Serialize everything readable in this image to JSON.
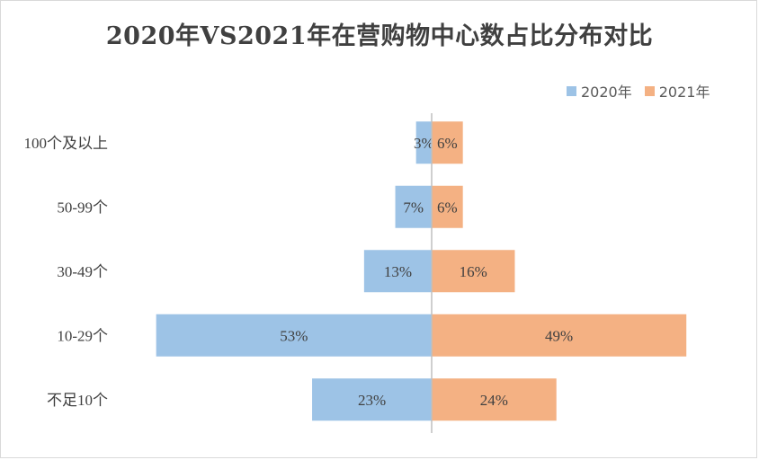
{
  "chart_data": {
    "type": "bar",
    "orientation": "horizontal-diverging",
    "title": "2020年VS2021年在营购物中心数占比分布对比",
    "categories": [
      "100个及以上",
      "50-99个",
      "30-49个",
      "10-29个",
      "不足10个"
    ],
    "series": [
      {
        "name": "2020年",
        "values": [
          3,
          7,
          13,
          53,
          23
        ],
        "labels": [
          "3%",
          "7%",
          "13%",
          "53%",
          "23%"
        ],
        "color": "#9dc3e6"
      },
      {
        "name": "2021年",
        "values": [
          6,
          6,
          16,
          49,
          24
        ],
        "labels": [
          "6%",
          "6%",
          "16%",
          "49%",
          "24%"
        ],
        "color": "#f4b183"
      }
    ],
    "legend_position": "top-right",
    "grid": false
  }
}
